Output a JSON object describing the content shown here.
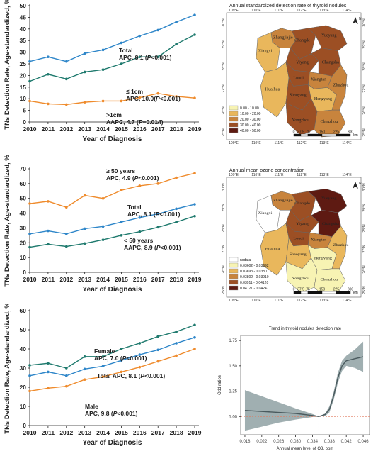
{
  "chart_data": [
    {
      "type": "line",
      "id": "panel1",
      "ylabel": "TNs Detection Rate, Age-standardized, %",
      "xlabel": "Year of Diagnosis",
      "x": [
        2010,
        2011,
        2012,
        2013,
        2014,
        2015,
        2016,
        2017,
        2018,
        2019
      ],
      "ylim": [
        0,
        50
      ],
      "yticks": [
        0,
        5,
        10,
        15,
        20,
        25,
        30,
        35,
        40,
        45,
        50
      ],
      "yticklabels": [
        "0",
        "5",
        "10",
        "15",
        "20",
        "25",
        "30",
        "35",
        "40",
        "45",
        "50"
      ],
      "xticklabels": [
        "2010",
        "2011",
        "2012",
        "2013",
        "2014",
        "2015",
        "2016",
        "2017",
        "2018",
        "2019"
      ],
      "ylabel_pct": "%",
      "series": [
        {
          "name": "Total",
          "color": "#2e86c9",
          "values": [
            26,
            28,
            26,
            29.5,
            31,
            34,
            37,
            39.5,
            43,
            46
          ]
        },
        {
          "name": "≤ 1cm",
          "color": "#1f7a6e",
          "values": [
            17.5,
            20.5,
            18.5,
            21.5,
            22.5,
            25,
            28,
            28,
            33.5,
            37.5
          ]
        },
        {
          "name": ">1cm",
          "color": "#ef8b2c",
          "values": [
            9,
            7.8,
            7.5,
            8.5,
            9,
            9,
            10.5,
            12.3,
            11,
            10.3
          ]
        }
      ],
      "annotations": [
        {
          "line1": "Total",
          "line2a": "APC, 8.1 (",
          "p": "P",
          "line2b": "<0.001)"
        },
        {
          "line1": "≤ 1cm",
          "line2a": "APC, 10.0(",
          "p": "P",
          "line2b": "<0.001)"
        },
        {
          "line1": ">1cm",
          "line2a": "AAPC, 4.7 (",
          "p": "P",
          "line2b": "=0.014)"
        }
      ]
    },
    {
      "type": "line",
      "id": "panel2",
      "ylabel": "TNs Detection Rate, Age-standardized, %",
      "xlabel": "Year of Diagnosis",
      "x": [
        2010,
        2011,
        2012,
        2013,
        2014,
        2015,
        2016,
        2017,
        2018,
        2019
      ],
      "ylim": [
        0,
        70
      ],
      "yticks": [
        0,
        10,
        20,
        30,
        40,
        50,
        60,
        70
      ],
      "yticklabels": [
        "0",
        "10",
        "20",
        "30",
        "40",
        "50",
        "60",
        "70"
      ],
      "xticklabels": [
        "2010",
        "2011",
        "2012",
        "2013",
        "2014",
        "2015",
        "2016",
        "2017",
        "2018",
        "2019"
      ],
      "ylabel_pct": "%",
      "series": [
        {
          "name": "≥ 50 years",
          "color": "#ef8b2c",
          "values": [
            46.5,
            48,
            44,
            52,
            50,
            55.5,
            58.5,
            60,
            64,
            67
          ]
        },
        {
          "name": "Total",
          "color": "#2e86c9",
          "values": [
            26,
            28,
            26,
            29.5,
            31,
            34,
            37,
            39.5,
            43,
            46
          ]
        },
        {
          "name": "< 50 years",
          "color": "#1f7a6e",
          "values": [
            17,
            19,
            17.5,
            19.5,
            22,
            25,
            27.5,
            30.5,
            34,
            38
          ]
        }
      ],
      "annotations": [
        {
          "line1": "≥ 50 years",
          "line2a": "APC, 4.9 (",
          "p": "P",
          "line2b": "<0.001)"
        },
        {
          "line1": "Total",
          "line2a": "APC, 8.1 (",
          "p": "P",
          "line2b": "<0.001)"
        },
        {
          "line1": "< 50 years",
          "line2a": "AAPC, 8.9 (",
          "p": "P",
          "line2b": "<0.001)"
        }
      ]
    },
    {
      "type": "line",
      "id": "panel3",
      "ylabel": "TNs Detection Rate, Age-standardized, %",
      "xlabel": "Year of Diagnosis",
      "x": [
        2010,
        2011,
        2012,
        2013,
        2014,
        2015,
        2016,
        2017,
        2018,
        2019
      ],
      "ylim": [
        0,
        60
      ],
      "yticks": [
        0,
        10,
        20,
        30,
        40,
        50,
        60
      ],
      "yticklabels": [
        "0",
        "10",
        "20",
        "30",
        "40",
        "50",
        "60"
      ],
      "xticklabels": [
        "2010",
        "2011",
        "2012",
        "2013",
        "2014",
        "2015",
        "2016",
        "2017",
        "2018",
        "2019"
      ],
      "ylabel_pct": "%",
      "series": [
        {
          "name": "Female",
          "color": "#1f7a6e",
          "values": [
            31.5,
            32.5,
            30,
            36,
            36,
            40,
            43,
            46.5,
            49,
            52.5
          ]
        },
        {
          "name": "Total",
          "color": "#2e86c9",
          "values": [
            26,
            28,
            26,
            29.5,
            31,
            34,
            37,
            39.5,
            43,
            46
          ]
        },
        {
          "name": "Male",
          "color": "#ef8b2c",
          "values": [
            18,
            19.5,
            20.5,
            24,
            25.5,
            28,
            30.5,
            33.5,
            36.5,
            40
          ]
        }
      ],
      "annotations": [
        {
          "line1": "Female",
          "line2a": "APC, 7.0 (",
          "p": "P",
          "line2b": "<0.001)"
        },
        {
          "line1": "Total APC, 8.1 (",
          "p": "P",
          "line2b": "<0.001)"
        },
        {
          "line1": "Male",
          "line2a": "APC, 9.8 (",
          "p": "P",
          "line2b": "<0.001)"
        }
      ]
    },
    {
      "type": "line",
      "id": "panel4",
      "title": "Trend in thyroid nodules detection rate",
      "xlabel": "Annual mean level of O3, ppm",
      "ylabel": "Odd ratios",
      "xlim": [
        0.017,
        0.0475
      ],
      "ylim": [
        0.82,
        1.8
      ],
      "xticks": [
        0.018,
        0.022,
        0.026,
        0.03,
        0.034,
        0.038,
        0.042,
        0.046
      ],
      "xticklabels": [
        "0.018",
        "0.022",
        "0.026",
        "0.030",
        "0.034",
        "0.038",
        "0.042",
        "0.046"
      ],
      "yticks": [
        1.0,
        1.25,
        1.5,
        1.75
      ],
      "yticklabels": [
        "1.00",
        "1.25",
        "1.50",
        "1.75"
      ],
      "reference_x": 0.0355,
      "reference_y": 1.0,
      "series": [
        {
          "name": "Odds ratio",
          "color": "#4a5a5e",
          "x": [
            0.018,
            0.022,
            0.026,
            0.03,
            0.034,
            0.0355,
            0.037,
            0.038,
            0.039,
            0.04,
            0.041,
            0.042,
            0.044,
            0.046
          ],
          "values": [
            1.06,
            1.05,
            1.04,
            1.03,
            1.01,
            1.0,
            1.02,
            1.07,
            1.2,
            1.38,
            1.5,
            1.55,
            1.57,
            1.59
          ],
          "lower": [
            0.86,
            0.9,
            0.94,
            0.97,
            0.995,
            1.0,
            1.005,
            1.04,
            1.16,
            1.33,
            1.45,
            1.5,
            1.48,
            1.44
          ],
          "upper": [
            1.26,
            1.2,
            1.14,
            1.08,
            1.025,
            1.0,
            1.03,
            1.1,
            1.24,
            1.43,
            1.55,
            1.6,
            1.66,
            1.74
          ]
        }
      ]
    }
  ],
  "maps": [
    {
      "id": "map1",
      "title": "Annual standardized detection rate of thyroid nodules",
      "longitudes": [
        "109°E",
        "110°E",
        "111°E",
        "112°E",
        "113°E",
        "114°E"
      ],
      "latitudes": [
        "30°N",
        "29°N",
        "28°N",
        "27°N",
        "26°N",
        "25°N"
      ],
      "north": "N",
      "scale": [
        "0",
        "37.5",
        "75",
        "150",
        "225",
        "300"
      ],
      "scale_unit": "km",
      "legend": [
        {
          "label": "0.00 - 10.00",
          "color": "#f7f3b3"
        },
        {
          "label": "10.00 - 20.00",
          "color": "#e9b75c"
        },
        {
          "label": "20.00 - 30.00",
          "color": "#c8843d"
        },
        {
          "label": "30.00 - 40.00",
          "color": "#9c4f24"
        },
        {
          "label": "40.00 - 50.00",
          "color": "#5e1a12"
        }
      ],
      "cities": [
        "Zhangjiajie",
        "Changde",
        "Yueyang",
        "Xiangxi",
        "Yiyang",
        "Changsha",
        "Huaihua",
        "Loudi",
        "Xiangtan",
        "Shaoyang",
        "Hengyang",
        "Zhuzhou",
        "Yongzhou",
        "Chenzhou"
      ]
    },
    {
      "id": "map2",
      "title": "Annual mean ozone concentration",
      "longitudes": [
        "109°E",
        "110°E",
        "111°E",
        "112°E",
        "113°E",
        "114°E"
      ],
      "latitudes": [
        "30°N",
        "29°N",
        "28°N",
        "27°N",
        "26°N",
        "25°N"
      ],
      "north": "N",
      "scale": [
        "0",
        "37.5",
        "75",
        "150",
        "225",
        "300"
      ],
      "scale_unit": "km",
      "legend": [
        {
          "label": "nodata",
          "color": "#ffffff"
        },
        {
          "label": "0.03602 - 0.03692",
          "color": "#f7f3b3"
        },
        {
          "label": "0.03693 - 0.03801",
          "color": "#e9b75c"
        },
        {
          "label": "0.03802 - 0.03910",
          "color": "#c8843d"
        },
        {
          "label": "0.03911 - 0.04120",
          "color": "#9c4f24"
        },
        {
          "label": "0.04121 - 0.04247",
          "color": "#5e1a12"
        }
      ],
      "cities": [
        "Zhangjiajie",
        "Changde",
        "Yueyang",
        "Xiangxi",
        "Yiyang",
        "Changsha",
        "Huaihua",
        "Loudi",
        "Xiangtan",
        "Shaoyang",
        "Hengyang",
        "Zhuzhou",
        "Yongzhou",
        "Chenzhou"
      ]
    }
  ]
}
